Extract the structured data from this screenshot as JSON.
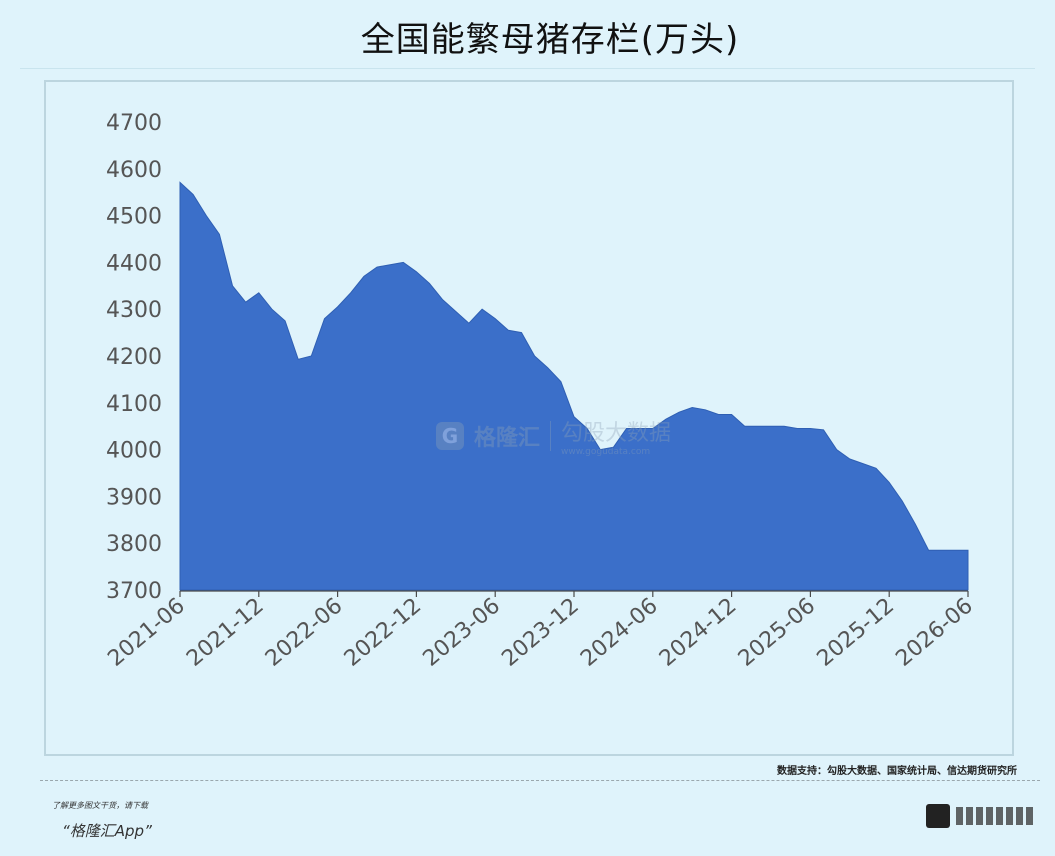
{
  "title": "全国能繁母猪存栏(万头)",
  "source": "数据支持：勾股大数据、国家统计局、信达期货研究所",
  "footer": {
    "promo": "了解更多图文干货，请下载",
    "app": "“格隆汇App”"
  },
  "watermark": {
    "badge": "G",
    "brand": "格隆汇",
    "site_cn": "勾股大数据",
    "site_url": "www.gogudata.com"
  },
  "colors": {
    "background": "#dff3fb",
    "area_fill": "#3b6fc9",
    "axis": "#4a4a4a",
    "tick_text": "#555555"
  },
  "chart_data": {
    "type": "area",
    "title": "全国能繁母猪存栏(万头)",
    "xlabel": "",
    "ylabel": "",
    "ylim": [
      3700,
      4700
    ],
    "yticks": [
      3700,
      3800,
      3900,
      4000,
      4100,
      4200,
      4300,
      4400,
      4500,
      4600,
      4700
    ],
    "xlim": [
      "2021-06",
      "2026-06"
    ],
    "xticks": [
      "2021-06",
      "2021-12",
      "2022-06",
      "2022-12",
      "2023-06",
      "2023-12",
      "2024-06",
      "2024-12",
      "2025-06",
      "2025-12",
      "2026-06"
    ],
    "grid": false,
    "legend": "none",
    "series": [
      {
        "x": [
          "2021-06",
          "2021-07",
          "2021-08",
          "2021-09",
          "2021-10",
          "2021-11",
          "2021-12",
          "2022-01",
          "2022-02",
          "2022-03",
          "2022-04",
          "2022-05",
          "2022-06",
          "2022-07",
          "2022-08",
          "2022-09",
          "2022-10",
          "2022-11",
          "2022-12",
          "2023-01",
          "2023-02",
          "2023-03",
          "2023-04",
          "2023-05",
          "2023-06",
          "2023-07",
          "2023-08",
          "2023-09",
          "2023-10",
          "2023-11",
          "2023-12",
          "2024-01",
          "2024-02",
          "2024-03",
          "2024-04",
          "2024-05",
          "2024-06",
          "2024-07",
          "2024-08",
          "2024-09",
          "2024-10",
          "2024-11",
          "2024-12",
          "2025-01",
          "2025-02",
          "2025-03",
          "2025-04",
          "2025-05",
          "2025-06",
          "2025-07",
          "2025-08",
          "2025-09",
          "2025-10",
          "2025-11",
          "2025-12",
          "2026-01",
          "2026-02",
          "2026-03",
          "2026-04",
          "2026-05",
          "2026-06"
        ],
        "values": [
          4571,
          4545,
          4500,
          4460,
          4350,
          4315,
          4335,
          4300,
          4275,
          4193,
          4200,
          4280,
          4305,
          4335,
          4370,
          4390,
          4395,
          4400,
          4380,
          4355,
          4320,
          4295,
          4270,
          4300,
          4280,
          4255,
          4250,
          4200,
          4175,
          4145,
          4070,
          4045,
          4000,
          4005,
          4045,
          4045,
          4045,
          4065,
          4080,
          4090,
          4085,
          4075,
          4075,
          4050,
          4050,
          4050,
          4050,
          4045,
          4045,
          4042,
          4000,
          3980,
          3970,
          3960,
          3930,
          3890,
          3840,
          3785,
          3785,
          3785,
          3785
        ]
      }
    ]
  }
}
